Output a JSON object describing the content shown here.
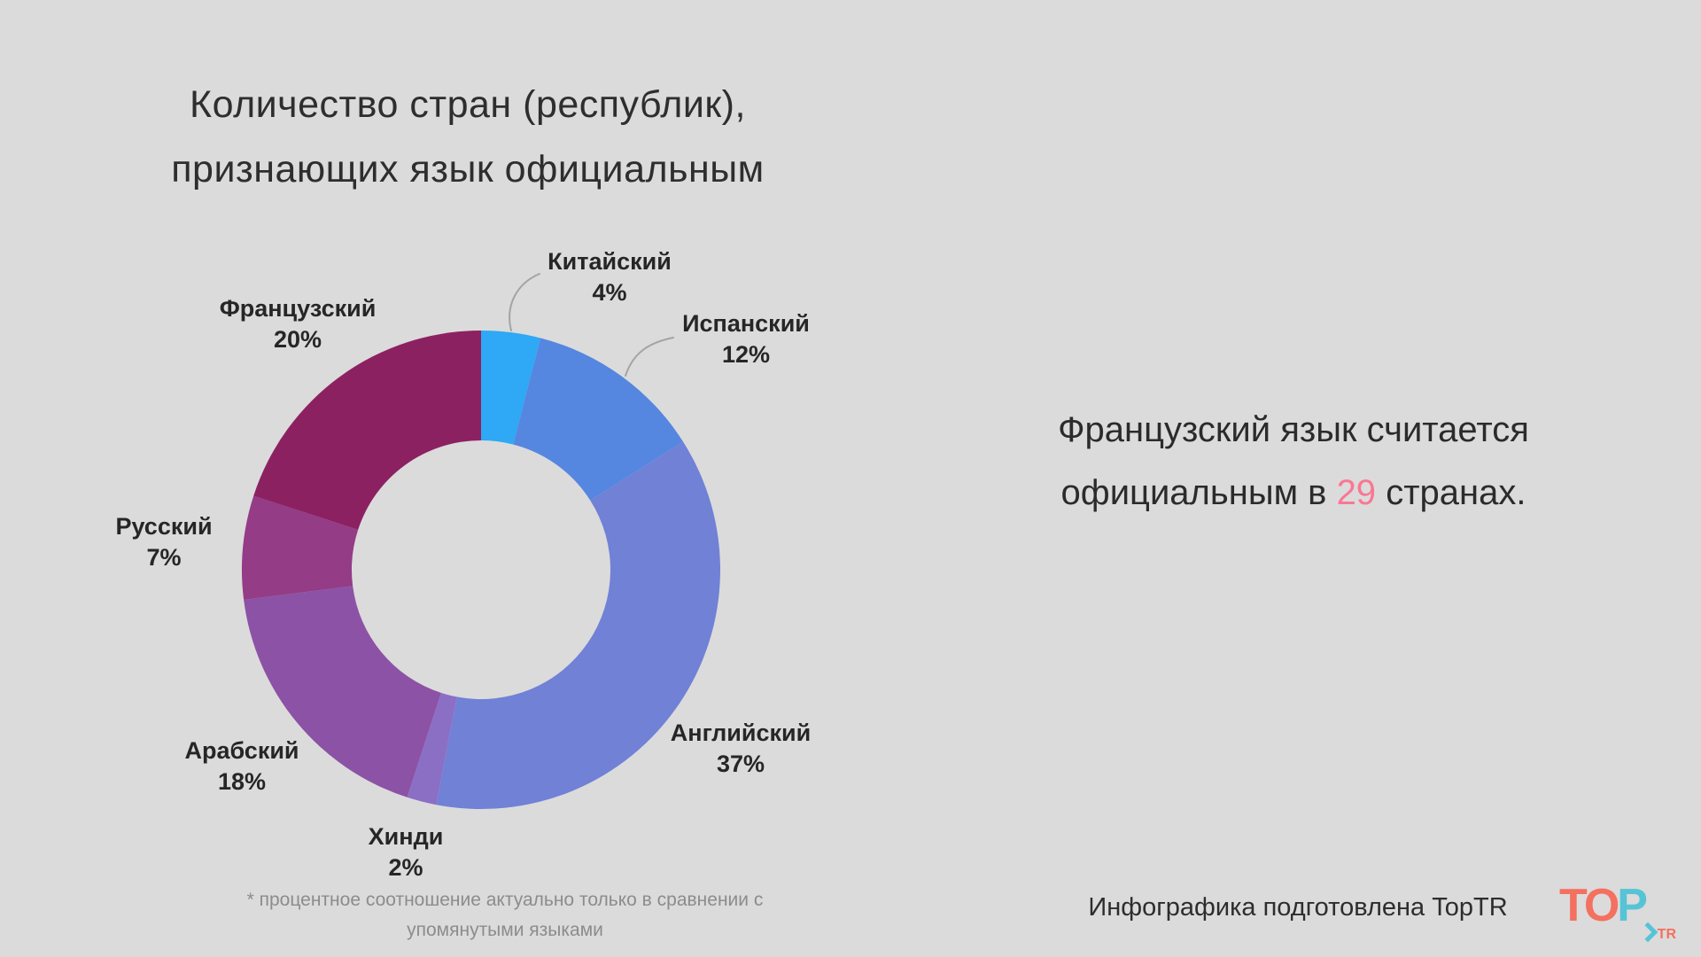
{
  "page": {
    "background_color": "#DBDBDB"
  },
  "title": {
    "line1": "Количество стран (республик),",
    "line2": "признающих язык официальным"
  },
  "chart_data": {
    "type": "pie",
    "subtype": "donut",
    "title": "Количество стран (республик), признающих язык официальным",
    "unit": "%",
    "start_angle_deg": 0,
    "direction": "clockwise",
    "legend_position": "outside-labels",
    "categories": [
      "Китайский",
      "Испанский",
      "Английский",
      "Хинди",
      "Арабский",
      "Русский",
      "Французский"
    ],
    "values": [
      4,
      12,
      37,
      2,
      18,
      7,
      20
    ],
    "segments": [
      {
        "key": "chinese",
        "name": "Китайский",
        "value": 4,
        "pct_label": "4%",
        "color": "#2FA8F5"
      },
      {
        "key": "spanish",
        "name": "Испанский",
        "value": 12,
        "pct_label": "12%",
        "color": "#5586E0"
      },
      {
        "key": "english",
        "name": "Английский",
        "value": 37,
        "pct_label": "37%",
        "color": "#7081D6"
      },
      {
        "key": "hindi",
        "name": "Хинди",
        "value": 2,
        "pct_label": "2%",
        "color": "#8B6FC5"
      },
      {
        "key": "arabic",
        "name": "Арабский",
        "value": 18,
        "pct_label": "18%",
        "color": "#8C52A5"
      },
      {
        "key": "russian",
        "name": "Русский",
        "value": 7,
        "pct_label": "7%",
        "color": "#943C86"
      },
      {
        "key": "french",
        "name": "Французский",
        "value": 20,
        "pct_label": "20%",
        "color": "#8C2162"
      }
    ]
  },
  "statement": {
    "line1": "Французский язык считается",
    "line2_prefix": "официальным в",
    "line2_highlight": "29",
    "line2_suffix": "странах.",
    "highlight_color": "#F97793"
  },
  "footnote": {
    "line1": "* процентное соотношение актуально только в сравнении с",
    "line2": "упомянутыми языками"
  },
  "credit": {
    "text": "Инфографика подготовлена TopTR",
    "logo": {
      "part1": "TO",
      "part2": "P",
      "part3": "TR",
      "coral_color": "#F4705F",
      "teal_color": "#56C4D6"
    }
  }
}
